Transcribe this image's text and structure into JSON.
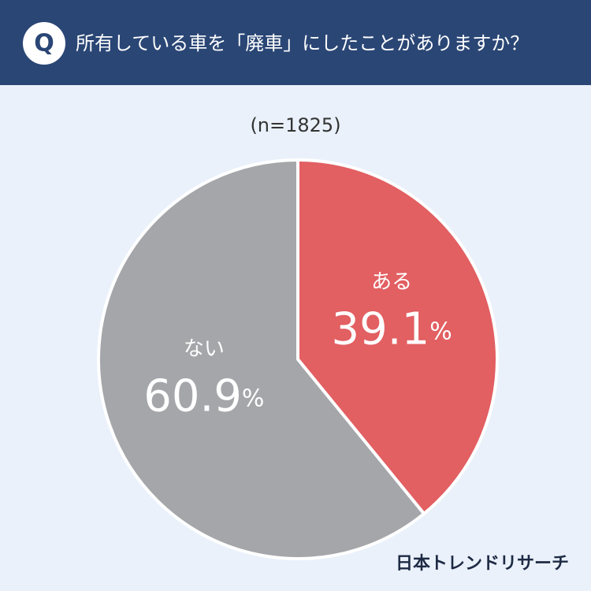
{
  "header": {
    "badge": "Q"
  },
  "chart_data": {
    "type": "pie",
    "title": "所有している車を「廃車」にしたことがありますか？",
    "subtitle": "(n=1825)",
    "categories": [
      "ある",
      "ない"
    ],
    "values": [
      39.1,
      60.9
    ],
    "value_labels": [
      "39.1%",
      "60.9%"
    ],
    "colors": [
      "#e25f62",
      "#a5a6aa"
    ]
  },
  "footer": {
    "brand": "日本トレンドリサーチ"
  }
}
